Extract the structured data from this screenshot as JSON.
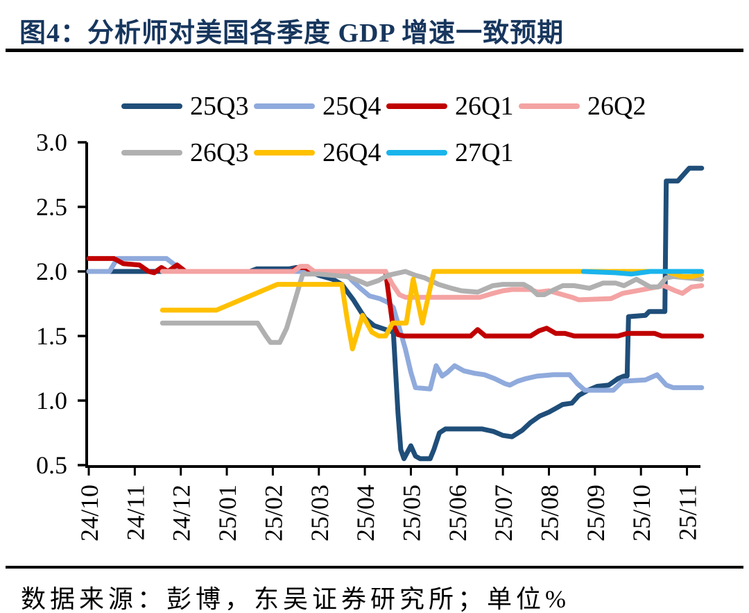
{
  "title": "图4：分析师对美国各季度 GDP 增速一致预期",
  "footer": {
    "source_text": "数据来源：彭博，东吴证券研究所；单位%"
  },
  "chart_data": {
    "type": "line",
    "x_unit": "month_index (0 = 24/10, weekly forecast snapshots)",
    "x_categories": [
      "24/10",
      "24/11",
      "24/12",
      "25/01",
      "25/02",
      "25/03",
      "25/04",
      "25/05",
      "25/06",
      "25/07",
      "25/08",
      "25/09",
      "25/10",
      "25/11"
    ],
    "y_ticks": [
      "3.0",
      "2.5",
      "2.0",
      "1.5",
      "1.0",
      "0.5"
    ],
    "ylim": [
      0.5,
      3.0
    ],
    "grid": false,
    "legend_position": "top-left, two rows",
    "unit": "%",
    "axis_color": "#000000",
    "series": [
      {
        "name": "25Q3",
        "color": "#1f4e79",
        "points": [
          [
            0,
            2
          ],
          [
            3.5,
            2
          ],
          [
            3.65,
            2.02
          ],
          [
            4.35,
            2.02
          ],
          [
            4.5,
            2.03
          ],
          [
            4.65,
            2.03
          ],
          [
            4.8,
            2
          ],
          [
            5,
            1.97
          ],
          [
            5.3,
            1.94
          ],
          [
            5.5,
            1.9
          ],
          [
            5.75,
            1.78
          ],
          [
            6,
            1.64
          ],
          [
            6.2,
            1.58
          ],
          [
            6.45,
            1.55
          ],
          [
            6.62,
            1.53
          ],
          [
            6.72,
            0.9
          ],
          [
            6.78,
            0.62
          ],
          [
            6.85,
            0.55
          ],
          [
            7,
            0.65
          ],
          [
            7.1,
            0.57
          ],
          [
            7.2,
            0.55
          ],
          [
            7.42,
            0.55
          ],
          [
            7.5,
            0.62
          ],
          [
            7.62,
            0.75
          ],
          [
            7.75,
            0.78
          ],
          [
            8.55,
            0.78
          ],
          [
            8.8,
            0.76
          ],
          [
            9,
            0.73
          ],
          [
            9.2,
            0.72
          ],
          [
            9.42,
            0.77
          ],
          [
            9.6,
            0.83
          ],
          [
            9.8,
            0.88
          ],
          [
            10,
            0.91
          ],
          [
            10.15,
            0.94
          ],
          [
            10.3,
            0.97
          ],
          [
            10.5,
            0.98
          ],
          [
            10.65,
            1.04
          ],
          [
            10.85,
            1.08
          ],
          [
            11.05,
            1.11
          ],
          [
            11.3,
            1.12
          ],
          [
            11.5,
            1.17
          ],
          [
            11.63,
            1.19
          ],
          [
            11.7,
            1.19
          ],
          [
            11.73,
            1.65
          ],
          [
            12.1,
            1.66
          ],
          [
            12.18,
            1.69
          ],
          [
            12.52,
            1.69
          ],
          [
            12.55,
            2.7
          ],
          [
            12.8,
            2.7
          ],
          [
            13.05,
            2.8
          ],
          [
            13.32,
            2.8
          ]
        ]
      },
      {
        "name": "25Q4",
        "color": "#8faadc",
        "points": [
          [
            0,
            2
          ],
          [
            0.45,
            2
          ],
          [
            0.62,
            2.1
          ],
          [
            1.69,
            2.1
          ],
          [
            2.06,
            2
          ],
          [
            5.55,
            2
          ],
          [
            5.72,
            1.93
          ],
          [
            5.9,
            1.87
          ],
          [
            6.1,
            1.81
          ],
          [
            6.32,
            1.79
          ],
          [
            6.5,
            1.76
          ],
          [
            6.62,
            1.72
          ],
          [
            6.75,
            1.56
          ],
          [
            6.88,
            1.4
          ],
          [
            7,
            1.22
          ],
          [
            7.1,
            1.1
          ],
          [
            7.42,
            1.09
          ],
          [
            7.55,
            1.27
          ],
          [
            7.68,
            1.19
          ],
          [
            7.8,
            1.22
          ],
          [
            7.95,
            1.27
          ],
          [
            8.15,
            1.23
          ],
          [
            8.4,
            1.21
          ],
          [
            8.6,
            1.2
          ],
          [
            8.82,
            1.17
          ],
          [
            9.05,
            1.13
          ],
          [
            9.15,
            1.12
          ],
          [
            9.32,
            1.15
          ],
          [
            9.5,
            1.17
          ],
          [
            9.75,
            1.19
          ],
          [
            10.1,
            1.2
          ],
          [
            10.45,
            1.2
          ],
          [
            10.62,
            1.13
          ],
          [
            10.78,
            1.08
          ],
          [
            11.4,
            1.08
          ],
          [
            11.6,
            1.15
          ],
          [
            12.1,
            1.16
          ],
          [
            12.35,
            1.2
          ],
          [
            12.55,
            1.12
          ],
          [
            12.7,
            1.1
          ],
          [
            13.32,
            1.1
          ]
        ]
      },
      {
        "name": "26Q1",
        "color": "#c00000",
        "points": [
          [
            0,
            2.1
          ],
          [
            0.55,
            2.1
          ],
          [
            0.75,
            2.06
          ],
          [
            1.1,
            2.05
          ],
          [
            1.3,
            2
          ],
          [
            1.42,
            1.99
          ],
          [
            1.58,
            2.03
          ],
          [
            1.72,
            2
          ],
          [
            1.92,
            2.05
          ],
          [
            2.1,
            2
          ],
          [
            4.4,
            2
          ],
          [
            4.55,
            2.03
          ],
          [
            4.7,
            2.03
          ],
          [
            4.85,
            2
          ],
          [
            6.45,
            2
          ],
          [
            6.6,
            1.6
          ],
          [
            6.72,
            1.51
          ],
          [
            6.85,
            1.5
          ],
          [
            8.3,
            1.5
          ],
          [
            8.45,
            1.55
          ],
          [
            8.62,
            1.5
          ],
          [
            9.6,
            1.5
          ],
          [
            9.78,
            1.54
          ],
          [
            9.95,
            1.56
          ],
          [
            10.15,
            1.52
          ],
          [
            10.35,
            1.52
          ],
          [
            10.55,
            1.5
          ],
          [
            11.5,
            1.5
          ],
          [
            11.7,
            1.52
          ],
          [
            12.3,
            1.52
          ],
          [
            12.45,
            1.5
          ],
          [
            13.32,
            1.5
          ]
        ]
      },
      {
        "name": "26Q2",
        "color": "#f4a3a3",
        "points": [
          [
            1.6,
            2
          ],
          [
            4.45,
            2
          ],
          [
            4.6,
            2.04
          ],
          [
            4.75,
            2.04
          ],
          [
            4.9,
            2
          ],
          [
            6.45,
            2
          ],
          [
            6.6,
            1.9
          ],
          [
            6.75,
            1.82
          ],
          [
            6.88,
            1.8
          ],
          [
            8.5,
            1.8
          ],
          [
            8.78,
            1.83
          ],
          [
            9,
            1.85
          ],
          [
            9.2,
            1.86
          ],
          [
            9.6,
            1.86
          ],
          [
            9.75,
            1.84
          ],
          [
            10,
            1.85
          ],
          [
            10.3,
            1.82
          ],
          [
            10.5,
            1.8
          ],
          [
            10.65,
            1.78
          ],
          [
            11.35,
            1.79
          ],
          [
            11.6,
            1.83
          ],
          [
            11.9,
            1.85
          ],
          [
            12.2,
            1.87
          ],
          [
            12.5,
            1.89
          ],
          [
            12.75,
            1.85
          ],
          [
            12.9,
            1.83
          ],
          [
            13.1,
            1.88
          ],
          [
            13.32,
            1.89
          ]
        ]
      },
      {
        "name": "26Q3",
        "color": "#b0b0b0",
        "points": [
          [
            1.6,
            1.6
          ],
          [
            3.67,
            1.6
          ],
          [
            3.85,
            1.5
          ],
          [
            3.95,
            1.45
          ],
          [
            4.15,
            1.45
          ],
          [
            4.3,
            1.56
          ],
          [
            4.5,
            1.8
          ],
          [
            4.65,
            1.98
          ],
          [
            5,
            1.98
          ],
          [
            5.3,
            1.97
          ],
          [
            5.6,
            1.96
          ],
          [
            5.78,
            1.94
          ],
          [
            5.92,
            1.92
          ],
          [
            6.05,
            1.9
          ],
          [
            6.3,
            1.93
          ],
          [
            6.5,
            1.97
          ],
          [
            6.88,
            2
          ],
          [
            7.1,
            1.97
          ],
          [
            7.3,
            1.95
          ],
          [
            7.6,
            1.9
          ],
          [
            7.88,
            1.87
          ],
          [
            8.1,
            1.85
          ],
          [
            8.45,
            1.84
          ],
          [
            8.78,
            1.89
          ],
          [
            9,
            1.9
          ],
          [
            9.45,
            1.9
          ],
          [
            9.6,
            1.87
          ],
          [
            9.75,
            1.82
          ],
          [
            9.9,
            1.82
          ],
          [
            10.12,
            1.86
          ],
          [
            10.3,
            1.89
          ],
          [
            10.55,
            1.89
          ],
          [
            10.88,
            1.87
          ],
          [
            11.18,
            1.91
          ],
          [
            11.45,
            1.91
          ],
          [
            11.63,
            1.89
          ],
          [
            11.9,
            1.94
          ],
          [
            12.2,
            1.88
          ],
          [
            12.38,
            1.88
          ],
          [
            12.55,
            1.95
          ],
          [
            12.7,
            1.96
          ],
          [
            13,
            1.95
          ],
          [
            13.32,
            1.94
          ]
        ]
      },
      {
        "name": "26Q4",
        "color": "#ffc000",
        "points": [
          [
            1.6,
            1.7
          ],
          [
            2.77,
            1.7
          ],
          [
            4.1,
            1.9
          ],
          [
            5.5,
            1.9
          ],
          [
            5.62,
            1.62
          ],
          [
            5.73,
            1.4
          ],
          [
            5.95,
            1.66
          ],
          [
            6.15,
            1.53
          ],
          [
            6.3,
            1.5
          ],
          [
            6.45,
            1.5
          ],
          [
            6.6,
            1.6
          ],
          [
            6.9,
            1.6
          ],
          [
            7.05,
            1.94
          ],
          [
            7.25,
            1.6
          ],
          [
            7.5,
            2
          ],
          [
            12.55,
            2
          ],
          [
            12.9,
            1.96
          ],
          [
            13.1,
            1.96
          ],
          [
            13.32,
            1.98
          ]
        ]
      },
      {
        "name": "27Q1",
        "color": "#1ab4ec",
        "points": [
          [
            10.75,
            2
          ],
          [
            11.45,
            1.99
          ],
          [
            11.8,
            1.98
          ],
          [
            12.2,
            2
          ],
          [
            13.32,
            2
          ]
        ]
      }
    ]
  }
}
